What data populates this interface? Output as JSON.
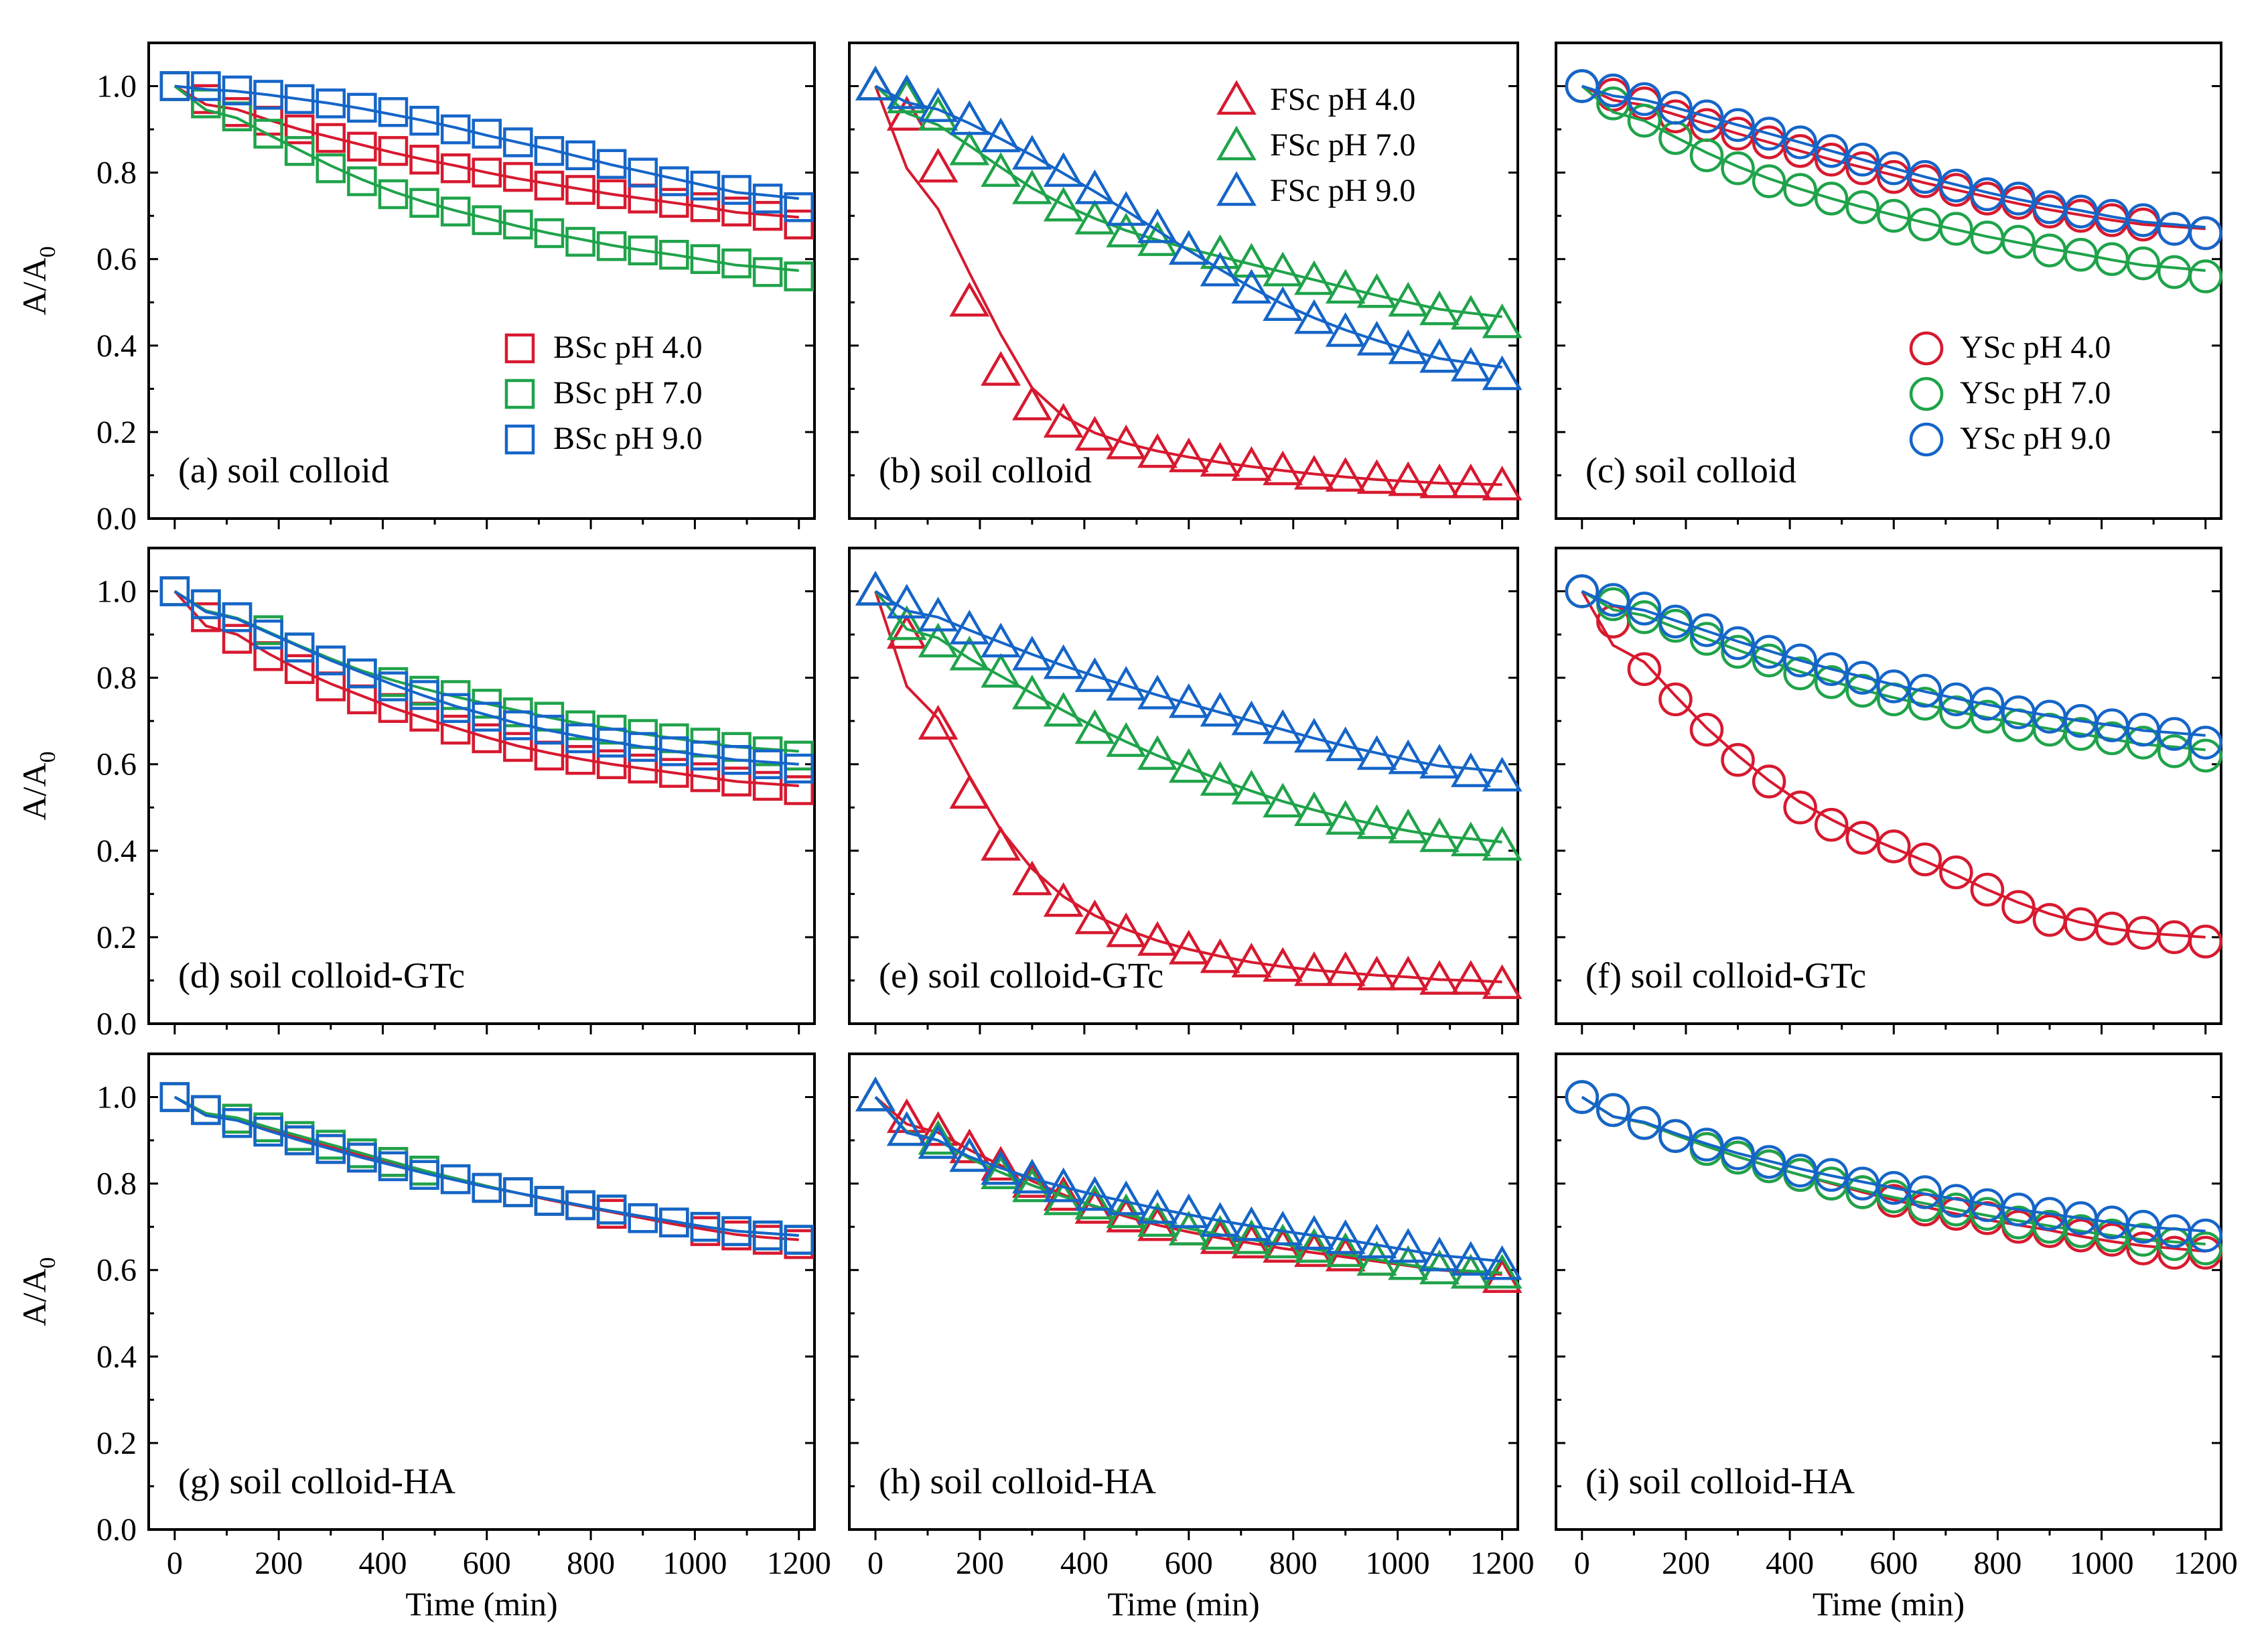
{
  "figure": {
    "xlabel": "Time (min)",
    "ylabel_main": "A/A",
    "ylabel_sub": "0",
    "series_names": [
      "pH 4.0",
      "pH 7.0",
      "pH 9.0"
    ]
  },
  "chart_data": [
    {
      "type": "scatter",
      "panel": "a",
      "title": "(a) soil colloid",
      "marker": "square",
      "legend": [
        "BSc pH 4.0",
        "BSc pH 7.0",
        "BSc pH 9.0"
      ],
      "legend_position": "bottom-right",
      "xlabel": "",
      "ylabel": "A/A0",
      "xlim": [
        -50,
        1230
      ],
      "ylim": [
        0,
        1.1
      ],
      "x": [
        0,
        60,
        120,
        180,
        240,
        300,
        360,
        420,
        480,
        540,
        600,
        660,
        720,
        780,
        840,
        900,
        960,
        1020,
        1080,
        1140,
        1200
      ],
      "series": [
        {
          "name": "BSc pH 4.0",
          "color": "#d7192f",
          "values": [
            1.0,
            0.97,
            0.94,
            0.92,
            0.9,
            0.88,
            0.86,
            0.85,
            0.83,
            0.81,
            0.8,
            0.79,
            0.77,
            0.76,
            0.75,
            0.74,
            0.73,
            0.72,
            0.71,
            0.7,
            0.68
          ]
        },
        {
          "name": "BSc pH 7.0",
          "color": "#1fa34a",
          "values": [
            1.0,
            0.96,
            0.93,
            0.89,
            0.85,
            0.81,
            0.78,
            0.75,
            0.73,
            0.71,
            0.69,
            0.68,
            0.66,
            0.64,
            0.63,
            0.62,
            0.61,
            0.6,
            0.59,
            0.57,
            0.56
          ]
        },
        {
          "name": "BSc pH 9.0",
          "color": "#1565c8",
          "values": [
            1.0,
            1.0,
            0.99,
            0.98,
            0.97,
            0.96,
            0.95,
            0.94,
            0.92,
            0.9,
            0.89,
            0.87,
            0.85,
            0.84,
            0.82,
            0.8,
            0.78,
            0.77,
            0.76,
            0.74,
            0.72
          ]
        }
      ]
    },
    {
      "type": "scatter",
      "panel": "b",
      "title": "(b) soil colloid",
      "marker": "triangle",
      "legend": [
        "FSc pH 4.0",
        "FSc pH 7.0",
        "FSc pH 9.0"
      ],
      "legend_position": "top-right",
      "xlabel": "",
      "ylabel": "",
      "xlim": [
        -50,
        1230
      ],
      "ylim": [
        0,
        1.1
      ],
      "x": [
        0,
        60,
        120,
        180,
        240,
        300,
        360,
        420,
        480,
        540,
        600,
        660,
        720,
        780,
        840,
        900,
        960,
        1020,
        1080,
        1140,
        1200
      ],
      "series": [
        {
          "name": "FSc pH 4.0",
          "color": "#d7192f",
          "values": [
            1.0,
            0.93,
            0.81,
            0.5,
            0.34,
            0.26,
            0.22,
            0.19,
            0.17,
            0.15,
            0.14,
            0.13,
            0.12,
            0.11,
            0.1,
            0.095,
            0.09,
            0.085,
            0.08,
            0.08,
            0.075
          ]
        },
        {
          "name": "FSc pH 7.0",
          "color": "#1fa34a",
          "values": [
            1.0,
            0.97,
            0.93,
            0.85,
            0.8,
            0.76,
            0.72,
            0.69,
            0.66,
            0.64,
            0.62,
            0.61,
            0.59,
            0.57,
            0.55,
            0.53,
            0.52,
            0.5,
            0.48,
            0.47,
            0.45
          ]
        },
        {
          "name": "FSc pH 9.0",
          "color": "#1565c8",
          "values": [
            1.0,
            0.98,
            0.95,
            0.92,
            0.88,
            0.84,
            0.8,
            0.76,
            0.71,
            0.67,
            0.62,
            0.57,
            0.53,
            0.49,
            0.46,
            0.43,
            0.41,
            0.39,
            0.37,
            0.35,
            0.33
          ]
        }
      ]
    },
    {
      "type": "scatter",
      "panel": "c",
      "title": "(c) soil colloid",
      "marker": "circle",
      "legend": [
        "YSc pH 4.0",
        "YSc pH 7.0",
        "YSc pH 9.0"
      ],
      "legend_position": "bottom-right",
      "xlabel": "",
      "ylabel": "",
      "xlim": [
        -50,
        1230
      ],
      "ylim": [
        0,
        1.1
      ],
      "x": [
        0,
        60,
        120,
        180,
        240,
        300,
        360,
        420,
        480,
        540,
        600,
        660,
        720,
        780,
        840,
        900,
        960,
        1020,
        1080,
        1140,
        1200
      ],
      "series": [
        {
          "name": "YSc pH 4.0",
          "color": "#d7192f",
          "values": [
            1.0,
            0.98,
            0.96,
            0.93,
            0.91,
            0.89,
            0.87,
            0.85,
            0.83,
            0.81,
            0.79,
            0.78,
            0.76,
            0.74,
            0.73,
            0.71,
            0.7,
            0.69,
            0.68,
            0.67,
            0.66
          ]
        },
        {
          "name": "YSc pH 7.0",
          "color": "#1fa34a",
          "values": [
            1.0,
            0.96,
            0.92,
            0.88,
            0.84,
            0.81,
            0.78,
            0.76,
            0.74,
            0.72,
            0.7,
            0.68,
            0.67,
            0.65,
            0.64,
            0.62,
            0.61,
            0.6,
            0.59,
            0.57,
            0.56
          ]
        },
        {
          "name": "YSc pH 9.0",
          "color": "#1565c8",
          "values": [
            1.0,
            0.99,
            0.97,
            0.95,
            0.93,
            0.91,
            0.89,
            0.87,
            0.85,
            0.83,
            0.81,
            0.79,
            0.77,
            0.75,
            0.74,
            0.72,
            0.71,
            0.7,
            0.69,
            0.67,
            0.66
          ]
        }
      ]
    },
    {
      "type": "scatter",
      "panel": "d",
      "title": "(d) soil colloid-GTc",
      "marker": "square",
      "legend": [],
      "xlabel": "",
      "ylabel": "A/A0",
      "xlim": [
        -50,
        1230
      ],
      "ylim": [
        0,
        1.1
      ],
      "x": [
        0,
        60,
        120,
        180,
        240,
        300,
        360,
        420,
        480,
        540,
        600,
        660,
        720,
        780,
        840,
        900,
        960,
        1020,
        1080,
        1140,
        1200
      ],
      "series": [
        {
          "name": "BSc pH 4.0",
          "color": "#d7192f",
          "values": [
            1.0,
            0.94,
            0.89,
            0.85,
            0.82,
            0.78,
            0.75,
            0.73,
            0.71,
            0.68,
            0.66,
            0.64,
            0.62,
            0.61,
            0.6,
            0.59,
            0.58,
            0.57,
            0.56,
            0.55,
            0.54
          ]
        },
        {
          "name": "BSc pH 7.0",
          "color": "#1fa34a",
          "values": [
            1.0,
            0.97,
            0.94,
            0.91,
            0.87,
            0.84,
            0.81,
            0.79,
            0.77,
            0.76,
            0.74,
            0.72,
            0.71,
            0.69,
            0.68,
            0.67,
            0.66,
            0.65,
            0.64,
            0.63,
            0.62
          ]
        },
        {
          "name": "BSc pH 9.0",
          "color": "#1565c8",
          "values": [
            1.0,
            0.97,
            0.94,
            0.9,
            0.87,
            0.84,
            0.81,
            0.78,
            0.76,
            0.73,
            0.71,
            0.69,
            0.68,
            0.66,
            0.65,
            0.64,
            0.63,
            0.62,
            0.61,
            0.6,
            0.59
          ]
        }
      ]
    },
    {
      "type": "scatter",
      "panel": "e",
      "title": "(e) soil colloid-GTc",
      "marker": "triangle",
      "legend": [],
      "xlabel": "",
      "ylabel": "",
      "xlim": [
        -50,
        1230
      ],
      "ylim": [
        0,
        1.1
      ],
      "x": [
        0,
        60,
        120,
        180,
        240,
        300,
        360,
        420,
        480,
        540,
        600,
        660,
        720,
        780,
        840,
        900,
        960,
        1020,
        1080,
        1140,
        1200
      ],
      "series": [
        {
          "name": "FSc pH 4.0",
          "color": "#d7192f",
          "values": [
            1.0,
            0.9,
            0.69,
            0.53,
            0.41,
            0.33,
            0.28,
            0.24,
            0.21,
            0.19,
            0.17,
            0.15,
            0.14,
            0.13,
            0.12,
            0.12,
            0.11,
            0.11,
            0.1,
            0.1,
            0.09
          ]
        },
        {
          "name": "FSc pH 7.0",
          "color": "#1fa34a",
          "values": [
            1.0,
            0.92,
            0.88,
            0.85,
            0.81,
            0.76,
            0.72,
            0.68,
            0.65,
            0.62,
            0.59,
            0.56,
            0.54,
            0.51,
            0.49,
            0.47,
            0.46,
            0.45,
            0.43,
            0.42,
            0.41
          ]
        },
        {
          "name": "FSc pH 9.0",
          "color": "#1565c8",
          "values": [
            1.0,
            0.97,
            0.94,
            0.91,
            0.88,
            0.85,
            0.83,
            0.8,
            0.78,
            0.76,
            0.74,
            0.72,
            0.7,
            0.68,
            0.66,
            0.64,
            0.62,
            0.61,
            0.6,
            0.58,
            0.57
          ]
        }
      ]
    },
    {
      "type": "scatter",
      "panel": "f",
      "title": "(f) soil colloid-GTc",
      "marker": "circle",
      "legend": [],
      "xlabel": "",
      "ylabel": "",
      "xlim": [
        -50,
        1230
      ],
      "ylim": [
        0,
        1.1
      ],
      "x": [
        0,
        60,
        120,
        180,
        240,
        300,
        360,
        420,
        480,
        540,
        600,
        660,
        720,
        780,
        840,
        900,
        960,
        1020,
        1080,
        1140,
        1200
      ],
      "series": [
        {
          "name": "YSc pH 4.0",
          "color": "#d7192f",
          "values": [
            1.0,
            0.93,
            0.82,
            0.75,
            0.68,
            0.61,
            0.56,
            0.5,
            0.46,
            0.43,
            0.41,
            0.38,
            0.35,
            0.31,
            0.27,
            0.24,
            0.23,
            0.22,
            0.21,
            0.2,
            0.19
          ]
        },
        {
          "name": "YSc pH 7.0",
          "color": "#1fa34a",
          "values": [
            1.0,
            0.97,
            0.94,
            0.92,
            0.89,
            0.86,
            0.84,
            0.81,
            0.79,
            0.77,
            0.75,
            0.74,
            0.72,
            0.71,
            0.69,
            0.68,
            0.67,
            0.66,
            0.65,
            0.63,
            0.62
          ]
        },
        {
          "name": "YSc pH 9.0",
          "color": "#1565c8",
          "values": [
            1.0,
            0.98,
            0.96,
            0.93,
            0.91,
            0.88,
            0.86,
            0.84,
            0.82,
            0.8,
            0.78,
            0.77,
            0.75,
            0.74,
            0.72,
            0.71,
            0.7,
            0.69,
            0.68,
            0.67,
            0.65
          ]
        }
      ]
    },
    {
      "type": "scatter",
      "panel": "g",
      "title": "(g) soil colloid-HA",
      "marker": "square",
      "legend": [],
      "xlabel": "Time (min)",
      "ylabel": "A/A0",
      "xlim": [
        -50,
        1230
      ],
      "ylim": [
        0,
        1.1
      ],
      "x": [
        0,
        60,
        120,
        180,
        240,
        300,
        360,
        420,
        480,
        540,
        600,
        660,
        720,
        780,
        840,
        900,
        960,
        1020,
        1080,
        1140,
        1200
      ],
      "series": [
        {
          "name": "BSc pH 4.0",
          "color": "#d7192f",
          "values": [
            1.0,
            0.97,
            0.95,
            0.93,
            0.9,
            0.88,
            0.86,
            0.85,
            0.83,
            0.81,
            0.79,
            0.78,
            0.76,
            0.75,
            0.73,
            0.72,
            0.71,
            0.69,
            0.68,
            0.67,
            0.66
          ]
        },
        {
          "name": "BSc pH 7.0",
          "color": "#1fa34a",
          "values": [
            1.0,
            0.97,
            0.95,
            0.93,
            0.91,
            0.89,
            0.87,
            0.85,
            0.83,
            0.81,
            0.79,
            0.78,
            0.76,
            0.75,
            0.74,
            0.72,
            0.71,
            0.7,
            0.69,
            0.68,
            0.67
          ]
        },
        {
          "name": "BSc pH 9.0",
          "color": "#1565c8",
          "values": [
            1.0,
            0.97,
            0.94,
            0.92,
            0.9,
            0.88,
            0.86,
            0.84,
            0.82,
            0.81,
            0.79,
            0.78,
            0.76,
            0.75,
            0.74,
            0.72,
            0.71,
            0.7,
            0.69,
            0.68,
            0.67
          ]
        }
      ]
    },
    {
      "type": "scatter",
      "panel": "h",
      "title": "(h) soil colloid-HA",
      "marker": "triangle",
      "legend": [],
      "xlabel": "Time (min)",
      "ylabel": "",
      "xlim": [
        -50,
        1230
      ],
      "ylim": [
        0,
        1.1
      ],
      "x": [
        0,
        60,
        120,
        180,
        240,
        300,
        360,
        420,
        480,
        540,
        600,
        660,
        720,
        780,
        840,
        900,
        960,
        1020,
        1080,
        1140,
        1200
      ],
      "series": [
        {
          "name": "FSc pH 4.0",
          "color": "#d7192f",
          "values": [
            1.0,
            0.95,
            0.92,
            0.88,
            0.84,
            0.8,
            0.77,
            0.74,
            0.72,
            0.7,
            0.69,
            0.67,
            0.66,
            0.65,
            0.64,
            0.63,
            0.62,
            0.61,
            0.6,
            0.59,
            0.58
          ]
        },
        {
          "name": "FSc pH 7.0",
          "color": "#1fa34a",
          "values": [
            1.0,
            0.92,
            0.9,
            0.86,
            0.82,
            0.79,
            0.76,
            0.75,
            0.73,
            0.71,
            0.69,
            0.68,
            0.67,
            0.66,
            0.65,
            0.64,
            0.62,
            0.61,
            0.6,
            0.59,
            0.59
          ]
        },
        {
          "name": "FSc pH 9.0",
          "color": "#1565c8",
          "values": [
            1.0,
            0.92,
            0.89,
            0.86,
            0.83,
            0.81,
            0.79,
            0.77,
            0.76,
            0.74,
            0.73,
            0.71,
            0.7,
            0.69,
            0.68,
            0.67,
            0.66,
            0.65,
            0.63,
            0.62,
            0.61
          ]
        }
      ]
    },
    {
      "type": "scatter",
      "panel": "i",
      "title": "(i) soil colloid-HA",
      "marker": "circle",
      "legend": [],
      "xlabel": "Time (min)",
      "ylabel": "",
      "xlim": [
        -50,
        1230
      ],
      "ylim": [
        0,
        1.1
      ],
      "x": [
        0,
        60,
        120,
        180,
        240,
        300,
        360,
        420,
        480,
        540,
        600,
        660,
        720,
        780,
        840,
        900,
        960,
        1020,
        1080,
        1140,
        1200
      ],
      "series": [
        {
          "name": "YSc pH 4.0",
          "color": "#d7192f",
          "values": [
            1.0,
            0.97,
            0.94,
            0.91,
            0.88,
            0.86,
            0.84,
            0.82,
            0.8,
            0.78,
            0.76,
            0.74,
            0.73,
            0.72,
            0.7,
            0.69,
            0.68,
            0.67,
            0.65,
            0.64,
            0.64
          ]
        },
        {
          "name": "YSc pH 7.0",
          "color": "#1fa34a",
          "values": [
            1.0,
            0.97,
            0.94,
            0.91,
            0.88,
            0.86,
            0.84,
            0.82,
            0.8,
            0.78,
            0.77,
            0.75,
            0.74,
            0.73,
            0.71,
            0.7,
            0.69,
            0.68,
            0.67,
            0.66,
            0.65
          ]
        },
        {
          "name": "YSc pH 9.0",
          "color": "#1565c8",
          "values": [
            1.0,
            0.97,
            0.94,
            0.91,
            0.89,
            0.87,
            0.85,
            0.83,
            0.82,
            0.8,
            0.79,
            0.78,
            0.76,
            0.75,
            0.74,
            0.73,
            0.72,
            0.71,
            0.7,
            0.69,
            0.68
          ]
        }
      ]
    }
  ]
}
